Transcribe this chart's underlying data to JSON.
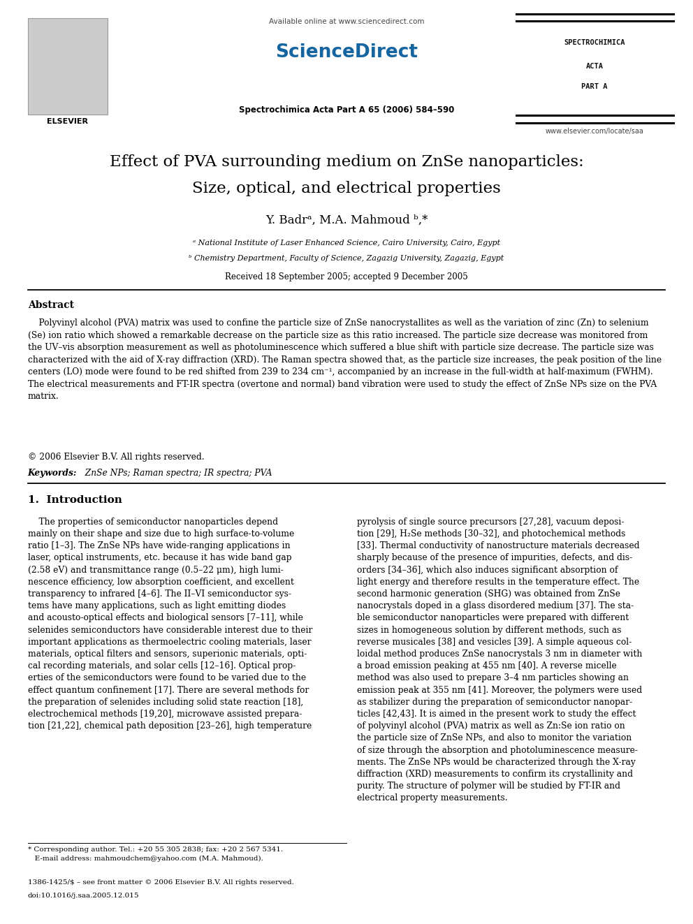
{
  "page_bg": "#ffffff",
  "elsevier_label": "ELSEVIER",
  "available_online": "Available online at www.sciencedirect.com",
  "sciencedirect": "ScienceDirect",
  "journal_info": "Spectrochimica Acta Part A 65 (2006) 584–590",
  "journal_right_line1": "SPECTROCHIMICA",
  "journal_right_line2": "ACTA",
  "journal_right_line3": "PART A",
  "journal_url": "www.elsevier.com/locate/saa",
  "title_line1": "Effect of PVA surrounding medium on ZnSe nanoparticles:",
  "title_line2": "Size, optical, and electrical properties",
  "authors": "Y. Badrᵃ, M.A. Mahmoud ᵇ,*",
  "affil_a": "ᵃ National Institute of Laser Enhanced Science, Cairo University, Cairo, Egypt",
  "affil_b": "ᵇ Chemistry Department, Faculty of Science, Zagazig University, Zagazig, Egypt",
  "received": "Received 18 September 2005; accepted 9 December 2005",
  "abstract_heading": "Abstract",
  "abstract_text": "    Polyvinyl alcohol (PVA) matrix was used to confine the particle size of ZnSe nanocrystallites as well as the variation of zinc (Zn) to selenium\n(Se) ion ratio which showed a remarkable decrease on the particle size as this ratio increased. The particle size decrease was monitored from\nthe UV–vis absorption measurement as well as photoluminescence which suffered a blue shift with particle size decrease. The particle size was\ncharacterized with the aid of X-ray diffraction (XRD). The Raman spectra showed that, as the particle size increases, the peak position of the line\ncenters (LO) mode were found to be red shifted from 239 to 234 cm⁻¹, accompanied by an increase in the full-width at half-maximum (FWHM).\nThe electrical measurements and FT-IR spectra (overtone and normal) band vibration were used to study the effect of ZnSe NPs size on the PVA\nmatrix.",
  "copyright": "© 2006 Elsevier B.V. All rights reserved.",
  "keywords_label": "Keywords:",
  "keywords": "  ZnSe NPs; Raman spectra; IR spectra; PVA",
  "intro_heading": "1.  Introduction",
  "intro_col1_para": "    The properties of semiconductor nanoparticles depend\nmainly on their shape and size due to high surface-to-volume\nratio [1–3]. The ZnSe NPs have wide-ranging applications in\nlaser, optical instruments, etc. because it has wide band gap\n(2.58 eV) and transmittance range (0.5–22 μm), high lumi-\nnescence efficiency, low absorption coefficient, and excellent\ntransparency to infrared [4–6]. The II–VI semiconductor sys-\ntems have many applications, such as light emitting diodes\nand acousto-optical effects and biological sensors [7–11], while\nselenides semiconductors have considerable interest due to their\nimportant applications as thermoelectric cooling materials, laser\nmaterials, optical filters and sensors, superionic materials, opti-\ncal recording materials, and solar cells [12–16]. Optical prop-\nerties of the semiconductors were found to be varied due to the\neffect quantum confinement [17]. There are several methods for\nthe preparation of selenides including solid state reaction [18],\nelectrochemical methods [19,20], microwave assisted prepara-\ntion [21,22], chemical path deposition [23–26], high temperature",
  "intro_col2_para": "pyrolysis of single source precursors [27,28], vacuum deposi-\ntion [29], H₂Se methods [30–32], and photochemical methods\n[33]. Thermal conductivity of nanostructure materials decreased\nsharply because of the presence of impurities, defects, and dis-\norders [34–36], which also induces significant absorption of\nlight energy and therefore results in the temperature effect. The\nsecond harmonic generation (SHG) was obtained from ZnSe\nnanocrystals doped in a glass disordered medium [37]. The sta-\nble semiconductor nanoparticles were prepared with different\nsizes in homogeneous solution by different methods, such as\nreverse musicales [38] and vesicles [39]. A simple aqueous col-\nloidal method produces ZnSe nanocrystals 3 nm in diameter with\na broad emission peaking at 455 nm [40]. A reverse micelle\nmethod was also used to prepare 3–4 nm particles showing an\nemission peak at 355 nm [41]. Moreover, the polymers were used\nas stabilizer during the preparation of semiconductor nanopar-\nticles [42,43]. It is aimed in the present work to study the effect\nof polyvinyl alcohol (PVA) matrix as well as Zn:Se ion ratio on\nthe particle size of ZnSe NPs, and also to monitor the variation\nof size through the absorption and photoluminescence measure-\nments. The ZnSe NPs would be characterized through the X-ray\ndiffraction (XRD) measurements to confirm its crystallinity and\npurity. The structure of polymer will be studied by FT-IR and\nelectrical property measurements.",
  "footnote_star": "* Corresponding author. Tel.: +20 55 305 2838; fax: +20 2 567 5341.\n   E-mail address: mahmoudchem@yahoo.com (M.A. Mahmoud).",
  "footer_issn": "1386-1425/$ – see front matter © 2006 Elsevier B.V. All rights reserved.",
  "footer_doi": "doi:10.1016/j.saa.2005.12.015"
}
